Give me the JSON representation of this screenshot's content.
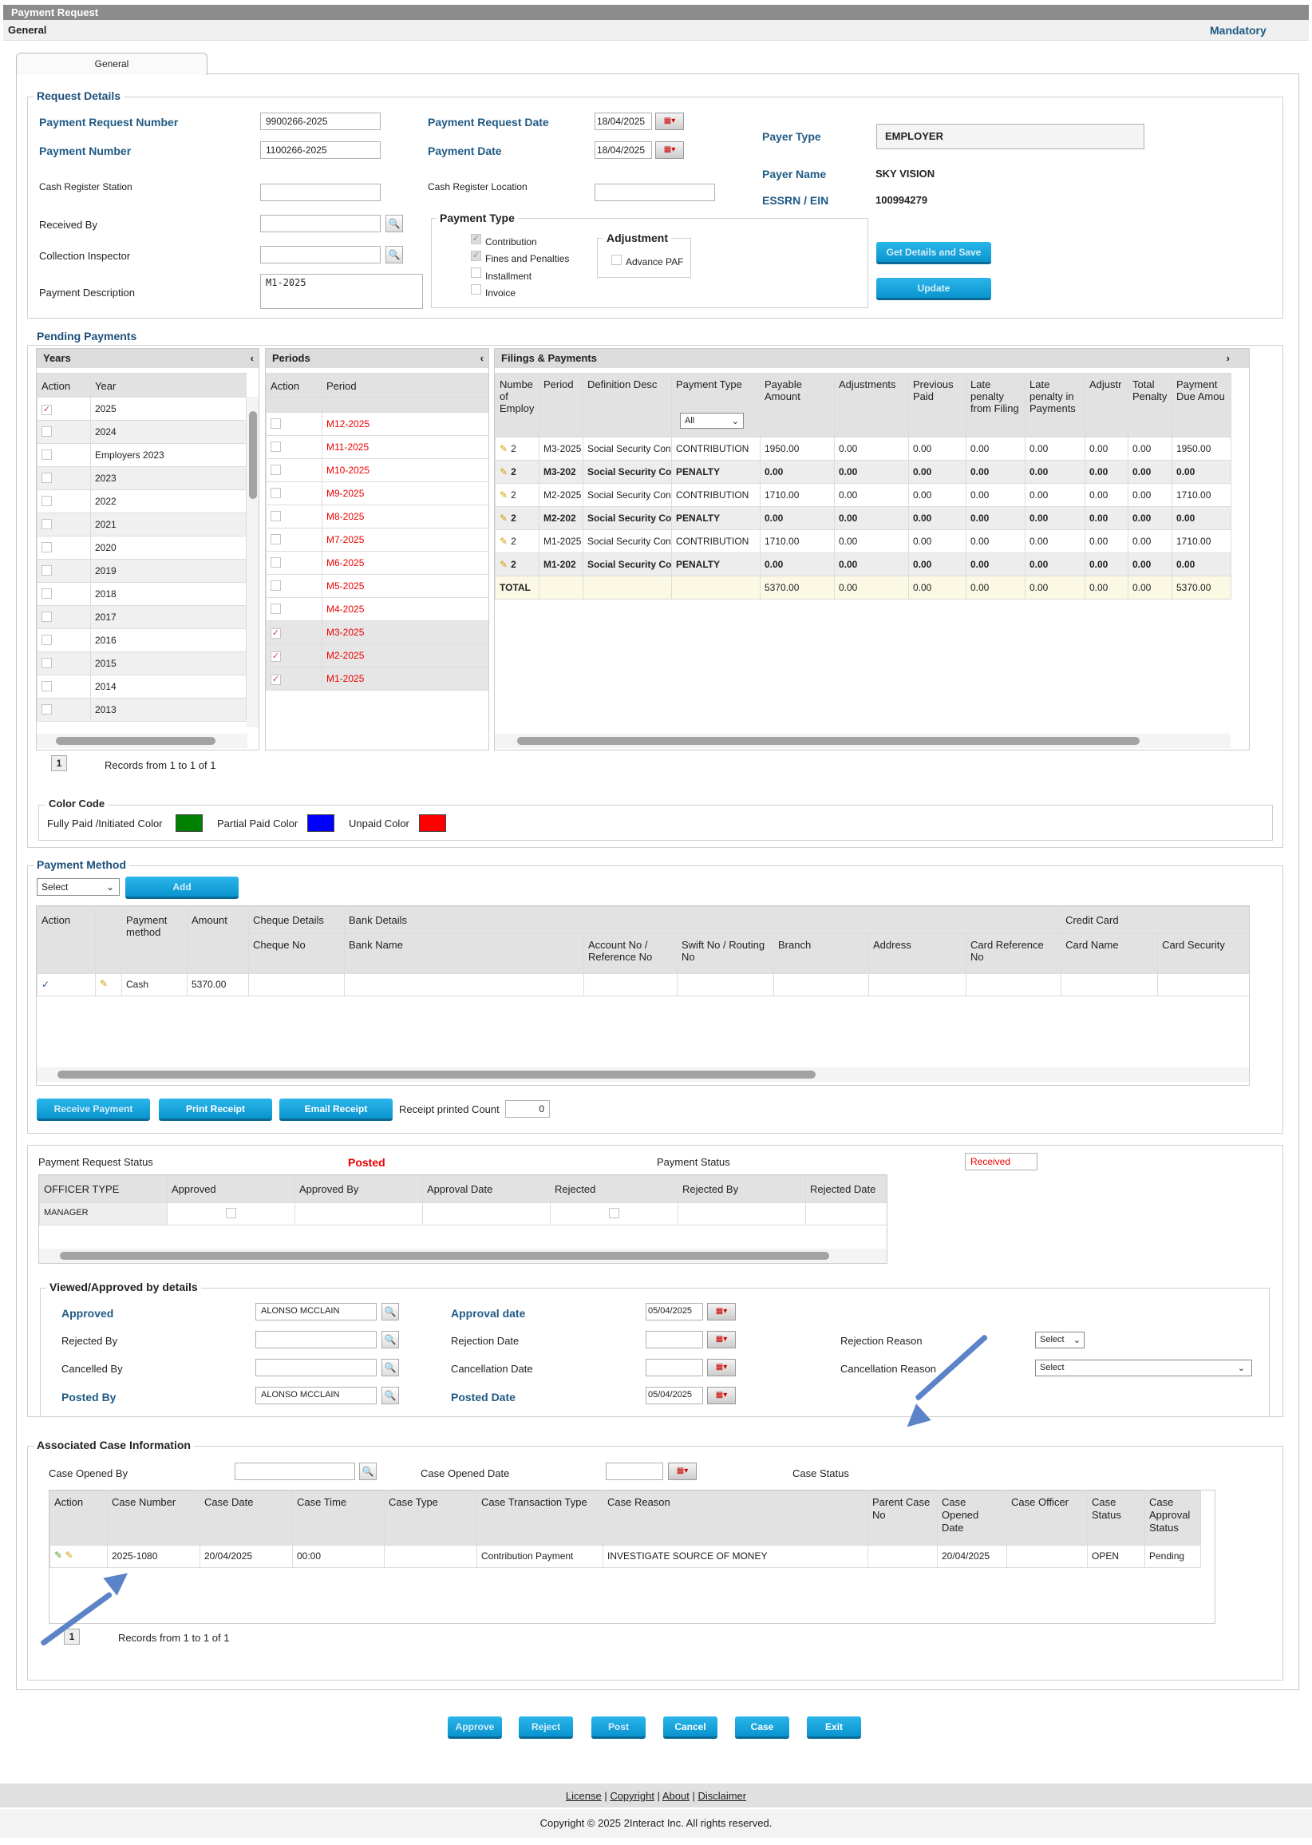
{
  "window": {
    "title": "Payment Request",
    "section": "General",
    "mandatory": "Mandatory",
    "tab": "General"
  },
  "request_details": {
    "legend": "Request Details",
    "payment_request_number_label": "Payment Request Number",
    "payment_request_number": "9900266-2025",
    "payment_number_label": "Payment Number",
    "payment_number": "1100266-2025",
    "cash_register_station_label": "Cash Register Station",
    "received_by_label": "Received By",
    "collection_inspector_label": "Collection Inspector",
    "payment_description_label": "Payment Description",
    "payment_description": "M1-2025",
    "payment_request_date_label": "Payment Request Date",
    "payment_request_date": "18/04/2025",
    "payment_date_label": "Payment Date",
    "payment_date": "18/04/2025",
    "cash_register_location_label": "Cash Register Location",
    "payment_type_legend": "Payment Type",
    "payment_types": [
      "Contribution",
      "Fines and Penalties",
      "Installment",
      "Invoice"
    ],
    "adjustment_legend": "Adjustment",
    "advance_paf": "Advance PAF",
    "payer_type_label": "Payer Type",
    "payer_type": "EMPLOYER",
    "payer_name_label": "Payer Name",
    "payer_name": "SKY VISION",
    "essrn_label": "ESSRN / EIN",
    "essrn": "100994279",
    "get_details_button": "Get Details and Save",
    "update_button": "Update"
  },
  "pending": {
    "legend": "Pending Payments",
    "years_title": "Years",
    "periods_title": "Periods",
    "filings_title": "Filings & Payments",
    "years_headers": [
      "Action",
      "Year"
    ],
    "years": [
      {
        "y": "2025",
        "c": true
      },
      {
        "y": "2024",
        "c": false
      },
      {
        "y": "Employers 2023",
        "c": false
      },
      {
        "y": "2023",
        "c": false
      },
      {
        "y": "2022",
        "c": false
      },
      {
        "y": "2021",
        "c": false
      },
      {
        "y": "2020",
        "c": false
      },
      {
        "y": "2019",
        "c": false
      },
      {
        "y": "2018",
        "c": false
      },
      {
        "y": "2017",
        "c": false
      },
      {
        "y": "2016",
        "c": false
      },
      {
        "y": "2015",
        "c": false
      },
      {
        "y": "2014",
        "c": false
      },
      {
        "y": "2013",
        "c": false
      }
    ],
    "periods_headers": [
      "Action",
      "Period"
    ],
    "periods": [
      {
        "p": "M12-2025",
        "c": false
      },
      {
        "p": "M11-2025",
        "c": false
      },
      {
        "p": "M10-2025",
        "c": false
      },
      {
        "p": "M9-2025",
        "c": false
      },
      {
        "p": "M8-2025",
        "c": false
      },
      {
        "p": "M7-2025",
        "c": false
      },
      {
        "p": "M6-2025",
        "c": false
      },
      {
        "p": "M5-2025",
        "c": false
      },
      {
        "p": "M4-2025",
        "c": false
      },
      {
        "p": "M3-2025",
        "c": true
      },
      {
        "p": "M2-2025",
        "c": true
      },
      {
        "p": "M1-2025",
        "c": true
      }
    ],
    "filings_headers": [
      "Numbe of Employ",
      "Period",
      "Definition Desc",
      "Payment Type",
      "Payable Amount",
      "Adjustments",
      "Previous Paid",
      "Late penalty from Filing",
      "Late penalty in Payments",
      "Adjustr",
      "Total Penalty",
      "Payment Due Amou"
    ],
    "payment_type_filter": "All",
    "filings": [
      {
        "n": "2",
        "period": "M3-2025",
        "desc": "Social Security Cont",
        "type": "CONTRIBUTION",
        "pay": "1950.00",
        "adj": "0.00",
        "prev": "0.00",
        "lf": "0.00",
        "lp": "0.00",
        "adjr": "0.00",
        "tp": "0.00",
        "due": "1950.00",
        "bold": false
      },
      {
        "n": "2",
        "period": "M3-202",
        "desc": "Social Security Co",
        "type": "PENALTY",
        "pay": "0.00",
        "adj": "0.00",
        "prev": "0.00",
        "lf": "0.00",
        "lp": "0.00",
        "adjr": "0.00",
        "tp": "0.00",
        "due": "0.00",
        "bold": true
      },
      {
        "n": "2",
        "period": "M2-2025",
        "desc": "Social Security Cont",
        "type": "CONTRIBUTION",
        "pay": "1710.00",
        "adj": "0.00",
        "prev": "0.00",
        "lf": "0.00",
        "lp": "0.00",
        "adjr": "0.00",
        "tp": "0.00",
        "due": "1710.00",
        "bold": false
      },
      {
        "n": "2",
        "period": "M2-202",
        "desc": "Social Security Co",
        "type": "PENALTY",
        "pay": "0.00",
        "adj": "0.00",
        "prev": "0.00",
        "lf": "0.00",
        "lp": "0.00",
        "adjr": "0.00",
        "tp": "0.00",
        "due": "0.00",
        "bold": true
      },
      {
        "n": "2",
        "period": "M1-2025",
        "desc": "Social Security Cont",
        "type": "CONTRIBUTION",
        "pay": "1710.00",
        "adj": "0.00",
        "prev": "0.00",
        "lf": "0.00",
        "lp": "0.00",
        "adjr": "0.00",
        "tp": "0.00",
        "due": "1710.00",
        "bold": false
      },
      {
        "n": "2",
        "period": "M1-202",
        "desc": "Social Security Co",
        "type": "PENALTY",
        "pay": "0.00",
        "adj": "0.00",
        "prev": "0.00",
        "lf": "0.00",
        "lp": "0.00",
        "adjr": "0.00",
        "tp": "0.00",
        "due": "0.00",
        "bold": true
      }
    ],
    "total": {
      "label": "TOTAL",
      "pay": "5370.00",
      "adj": "0.00",
      "prev": "0.00",
      "lf": "0.00",
      "lp": "0.00",
      "adjr": "0.00",
      "tp": "0.00",
      "due": "5370.00"
    },
    "page": "1",
    "records": "Records from 1 to 1 of 1",
    "color_code_legend": "Color Code",
    "fully_paid": "Fully Paid /Initiated Color",
    "partial_paid": "Partial Paid Color",
    "unpaid": "Unpaid Color",
    "colors": {
      "fully": "#008000",
      "partial": "#0000ff",
      "unpaid": "#ff0000"
    }
  },
  "payment_method": {
    "legend": "Payment Method",
    "select": "Select",
    "add_button": "Add",
    "headers_top": [
      "Action",
      "",
      "Payment method",
      "Amount",
      "Cheque Details",
      "Bank Details",
      "Credit Card"
    ],
    "headers_sub": [
      "Cheque No",
      "Bank Name",
      "Account No / Reference No",
      "Swift No / Routing No",
      "Branch",
      "Address",
      "Card Reference No",
      "Card Name",
      "Card Security"
    ],
    "row": {
      "method": "Cash",
      "amount": "5370.00"
    },
    "receive_button": "Receive Payment",
    "print_button": "Print Receipt",
    "email_button": "Email Receipt",
    "printed_count_label": "Receipt printed Count",
    "printed_count": "0"
  },
  "status": {
    "request_status_label": "Payment Request Status",
    "request_status": "Posted",
    "payment_status_label": "Payment Status",
    "payment_status": "Received",
    "headers": [
      "OFFICER TYPE",
      "Approved",
      "Approved By",
      "Approval Date",
      "Rejected",
      "Rejected By",
      "Rejected Date"
    ],
    "row": {
      "officer": "MANAGER"
    }
  },
  "viewed": {
    "legend": "Viewed/Approved by details",
    "approved_label": "Approved",
    "approved": "ALONSO MCCLAIN",
    "rejected_by_label": "Rejected By",
    "cancelled_by_label": "Cancelled By",
    "posted_by_label": "Posted By",
    "posted_by": "ALONSO MCCLAIN",
    "approval_date_label": "Approval date",
    "approval_date": "05/04/2025",
    "rejection_date_label": "Rejection Date",
    "cancellation_date_label": "Cancellation Date",
    "posted_date_label": "Posted Date",
    "posted_date": "05/04/2025",
    "rejection_reason_label": "Rejection Reason",
    "rejection_reason": "Select",
    "cancellation_reason_label": "Cancellation Reason",
    "cancellation_reason": "Select"
  },
  "case": {
    "legend": "Associated Case Information",
    "opened_by_label": "Case Opened By",
    "opened_date_label": "Case Opened Date",
    "status_label": "Case Status",
    "headers": [
      "Action",
      "Case Number",
      "Case Date",
      "Case Time",
      "Case Type",
      "Case Transaction Type",
      "Case Reason",
      "Parent Case No",
      "Case Opened Date",
      "Case Officer",
      "Case Status",
      "Case Approval Status"
    ],
    "row": {
      "number": "2025-1080",
      "date": "20/04/2025",
      "time": "00:00",
      "type": "",
      "trans": "Contribution Payment",
      "reason": "INVESTIGATE SOURCE OF MONEY",
      "parent": "",
      "opened": "20/04/2025",
      "officer": "",
      "status": "OPEN",
      "approval": "Pending"
    },
    "page": "1",
    "records": "Records from 1 to 1 of 1"
  },
  "actions": [
    "Approve",
    "Reject",
    "Post",
    "Cancel",
    "Case",
    "Exit"
  ],
  "footer": {
    "links": [
      "License",
      "Copyright",
      "About",
      "Disclaimer"
    ],
    "copyright": "Copyright © 2025 2Interact Inc. All rights reserved."
  }
}
